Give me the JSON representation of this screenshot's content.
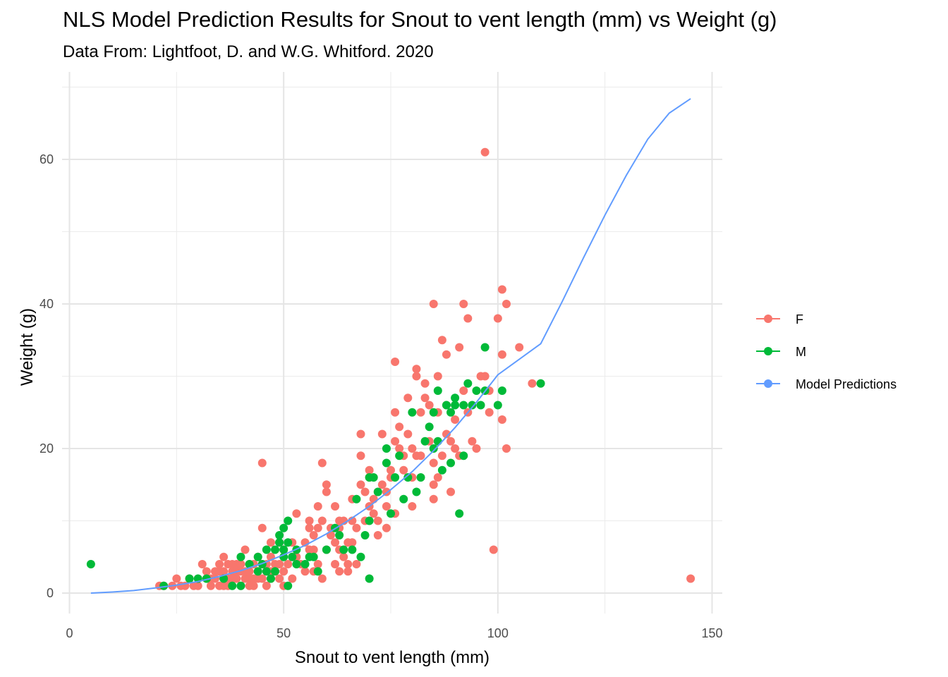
{
  "chart_data": {
    "type": "scatter",
    "title": "NLS Model Prediction Results for Snout to vent length (mm) vs Weight (g)",
    "subtitle": "Data From: Lightfoot, D. and W.G. Whitford. 2020",
    "xlabel": "Snout to vent length (mm)",
    "ylabel": "Weight (g)",
    "xlim": [
      0,
      150
    ],
    "ylim": [
      -3,
      70
    ],
    "xticks": [
      0,
      50,
      100,
      150
    ],
    "yticks": [
      0,
      20,
      40,
      60
    ],
    "grid": true,
    "legend_position": "right",
    "series": [
      {
        "name": "F",
        "color": "#F8766D",
        "points": [
          [
            21,
            1
          ],
          [
            22,
            1
          ],
          [
            24,
            1
          ],
          [
            25,
            2
          ],
          [
            26,
            1
          ],
          [
            27,
            1
          ],
          [
            28,
            2
          ],
          [
            29,
            1
          ],
          [
            30,
            1
          ],
          [
            31,
            4
          ],
          [
            32,
            2
          ],
          [
            32,
            3
          ],
          [
            33,
            1
          ],
          [
            33,
            2
          ],
          [
            34,
            3
          ],
          [
            34,
            2
          ],
          [
            35,
            3
          ],
          [
            35,
            4
          ],
          [
            35,
            1
          ],
          [
            36,
            5
          ],
          [
            36,
            2
          ],
          [
            36,
            3
          ],
          [
            37,
            4
          ],
          [
            37,
            2
          ],
          [
            37,
            1
          ],
          [
            38,
            3
          ],
          [
            38,
            4
          ],
          [
            38,
            2
          ],
          [
            39,
            3
          ],
          [
            39,
            2
          ],
          [
            39,
            4
          ],
          [
            40,
            1
          ],
          [
            40,
            3
          ],
          [
            40,
            4
          ],
          [
            41,
            6
          ],
          [
            41,
            2
          ],
          [
            41,
            3
          ],
          [
            42,
            3
          ],
          [
            42,
            4
          ],
          [
            42,
            2
          ],
          [
            43,
            4
          ],
          [
            43,
            2
          ],
          [
            43,
            1
          ],
          [
            44,
            3
          ],
          [
            44,
            5
          ],
          [
            44,
            2
          ],
          [
            45,
            18
          ],
          [
            45,
            9
          ],
          [
            45,
            4
          ],
          [
            45,
            2
          ],
          [
            46,
            3
          ],
          [
            46,
            4
          ],
          [
            46,
            1
          ],
          [
            47,
            5
          ],
          [
            47,
            3
          ],
          [
            47,
            2
          ],
          [
            48,
            3
          ],
          [
            48,
            4
          ],
          [
            49,
            7
          ],
          [
            49,
            4
          ],
          [
            49,
            2
          ],
          [
            50,
            1
          ],
          [
            50,
            6
          ],
          [
            50,
            3
          ],
          [
            51,
            4
          ],
          [
            52,
            2
          ],
          [
            52,
            7
          ],
          [
            53,
            11
          ],
          [
            53,
            5
          ],
          [
            54,
            4
          ],
          [
            55,
            3
          ],
          [
            55,
            7
          ],
          [
            56,
            9
          ],
          [
            56,
            10
          ],
          [
            56,
            6
          ],
          [
            57,
            8
          ],
          [
            57,
            3
          ],
          [
            57,
            6
          ],
          [
            58,
            9
          ],
          [
            58,
            12
          ],
          [
            58,
            4
          ],
          [
            59,
            18
          ],
          [
            59,
            2
          ],
          [
            59,
            10
          ],
          [
            60,
            15
          ],
          [
            60,
            14
          ],
          [
            60,
            6
          ],
          [
            61,
            8
          ],
          [
            61,
            9
          ],
          [
            62,
            12
          ],
          [
            62,
            4
          ],
          [
            62,
            7
          ],
          [
            63,
            9
          ],
          [
            63,
            10
          ],
          [
            63,
            6
          ],
          [
            64,
            10
          ],
          [
            64,
            5
          ],
          [
            65,
            4
          ],
          [
            65,
            7
          ],
          [
            65,
            3
          ],
          [
            66,
            13
          ],
          [
            66,
            10
          ],
          [
            66,
            7
          ],
          [
            67,
            4
          ],
          [
            67,
            9
          ],
          [
            68,
            15
          ],
          [
            68,
            19
          ],
          [
            68,
            22
          ],
          [
            69,
            10
          ],
          [
            69,
            14
          ],
          [
            70,
            17
          ],
          [
            70,
            12
          ],
          [
            71,
            13
          ],
          [
            71,
            11
          ],
          [
            72,
            14
          ],
          [
            72,
            8
          ],
          [
            72,
            10
          ],
          [
            73,
            15
          ],
          [
            73,
            22
          ],
          [
            74,
            9
          ],
          [
            74,
            12
          ],
          [
            74,
            14
          ],
          [
            75,
            17
          ],
          [
            75,
            16
          ],
          [
            76,
            21
          ],
          [
            76,
            25
          ],
          [
            76,
            32
          ],
          [
            76,
            11
          ],
          [
            77,
            23
          ],
          [
            77,
            20
          ],
          [
            78,
            19
          ],
          [
            78,
            17
          ],
          [
            79,
            22
          ],
          [
            79,
            27
          ],
          [
            80,
            16
          ],
          [
            80,
            20
          ],
          [
            81,
            19
          ],
          [
            81,
            31
          ],
          [
            81,
            30
          ],
          [
            82,
            25
          ],
          [
            82,
            19
          ],
          [
            83,
            29
          ],
          [
            83,
            27
          ],
          [
            84,
            21
          ],
          [
            84,
            26
          ],
          [
            85,
            18
          ],
          [
            85,
            40
          ],
          [
            85,
            15
          ],
          [
            86,
            30
          ],
          [
            86,
            25
          ],
          [
            86,
            16
          ],
          [
            87,
            35
          ],
          [
            87,
            19
          ],
          [
            88,
            26
          ],
          [
            88,
            33
          ],
          [
            88,
            22
          ],
          [
            89,
            21
          ],
          [
            89,
            14
          ],
          [
            90,
            24
          ],
          [
            90,
            20
          ],
          [
            91,
            34
          ],
          [
            91,
            19
          ],
          [
            92,
            40
          ],
          [
            92,
            28
          ],
          [
            93,
            38
          ],
          [
            93,
            25
          ],
          [
            94,
            21
          ],
          [
            95,
            20
          ],
          [
            96,
            30
          ],
          [
            97,
            61
          ],
          [
            97,
            30
          ],
          [
            98,
            28
          ],
          [
            98,
            25
          ],
          [
            99,
            6
          ],
          [
            100,
            38
          ],
          [
            101,
            42
          ],
          [
            101,
            33
          ],
          [
            101,
            24
          ],
          [
            102,
            40
          ],
          [
            102,
            20
          ],
          [
            105,
            34
          ],
          [
            108,
            29
          ],
          [
            145,
            2
          ],
          [
            85,
            13
          ],
          [
            80,
            12
          ],
          [
            70,
            16
          ],
          [
            63,
            3
          ],
          [
            52,
            5
          ],
          [
            47,
            7
          ],
          [
            42,
            1
          ],
          [
            36,
            1
          ]
        ]
      },
      {
        "name": "M",
        "color": "#00BA38",
        "points": [
          [
            5,
            4
          ],
          [
            22,
            1
          ],
          [
            28,
            2
          ],
          [
            30,
            2
          ],
          [
            32,
            2
          ],
          [
            36,
            2
          ],
          [
            38,
            1
          ],
          [
            40,
            1
          ],
          [
            40,
            5
          ],
          [
            42,
            4
          ],
          [
            44,
            3
          ],
          [
            44,
            5
          ],
          [
            45,
            4
          ],
          [
            46,
            3
          ],
          [
            46,
            6
          ],
          [
            47,
            2
          ],
          [
            48,
            6
          ],
          [
            48,
            3
          ],
          [
            49,
            7
          ],
          [
            49,
            8
          ],
          [
            50,
            6
          ],
          [
            50,
            5
          ],
          [
            50,
            9
          ],
          [
            51,
            1
          ],
          [
            51,
            10
          ],
          [
            51,
            7
          ],
          [
            52,
            5
          ],
          [
            53,
            4
          ],
          [
            53,
            6
          ],
          [
            55,
            4
          ],
          [
            56,
            5
          ],
          [
            57,
            5
          ],
          [
            58,
            3
          ],
          [
            60,
            6
          ],
          [
            62,
            9
          ],
          [
            63,
            8
          ],
          [
            64,
            6
          ],
          [
            66,
            6
          ],
          [
            67,
            13
          ],
          [
            68,
            5
          ],
          [
            69,
            8
          ],
          [
            70,
            10
          ],
          [
            70,
            2
          ],
          [
            70,
            16
          ],
          [
            71,
            16
          ],
          [
            72,
            14
          ],
          [
            74,
            20
          ],
          [
            74,
            18
          ],
          [
            75,
            11
          ],
          [
            76,
            16
          ],
          [
            77,
            19
          ],
          [
            78,
            13
          ],
          [
            79,
            16
          ],
          [
            80,
            25
          ],
          [
            81,
            14
          ],
          [
            82,
            16
          ],
          [
            83,
            21
          ],
          [
            84,
            23
          ],
          [
            85,
            25
          ],
          [
            85,
            20
          ],
          [
            86,
            21
          ],
          [
            86,
            28
          ],
          [
            87,
            17
          ],
          [
            88,
            26
          ],
          [
            89,
            25
          ],
          [
            89,
            18
          ],
          [
            90,
            26
          ],
          [
            90,
            27
          ],
          [
            91,
            11
          ],
          [
            92,
            26
          ],
          [
            92,
            19
          ],
          [
            93,
            29
          ],
          [
            94,
            26
          ],
          [
            95,
            28
          ],
          [
            96,
            26
          ],
          [
            97,
            28
          ],
          [
            97,
            34
          ],
          [
            100,
            26
          ],
          [
            101,
            28
          ],
          [
            110,
            29
          ]
        ]
      },
      {
        "name": "Model Predictions",
        "color": "#619CFF",
        "line": [
          [
            5,
            0
          ],
          [
            10,
            0.15
          ],
          [
            15,
            0.35
          ],
          [
            20,
            0.7
          ],
          [
            25,
            1.1
          ],
          [
            30,
            1.6
          ],
          [
            35,
            2.3
          ],
          [
            40,
            3.1
          ],
          [
            45,
            4.1
          ],
          [
            50,
            5.3
          ],
          [
            55,
            6.6
          ],
          [
            60,
            8.2
          ],
          [
            65,
            10.0
          ],
          [
            70,
            12.0
          ],
          [
            75,
            14.3
          ],
          [
            80,
            16.8
          ],
          [
            85,
            19.7
          ],
          [
            90,
            22.9
          ],
          [
            95,
            26.4
          ],
          [
            100,
            30.2
          ],
          [
            110,
            34.5
          ],
          [
            115,
            40.3
          ],
          [
            120,
            46.4
          ],
          [
            125,
            52.3
          ],
          [
            130,
            57.8
          ],
          [
            135,
            62.8
          ],
          [
            140,
            66.4
          ],
          [
            145,
            68.4
          ]
        ]
      }
    ]
  }
}
